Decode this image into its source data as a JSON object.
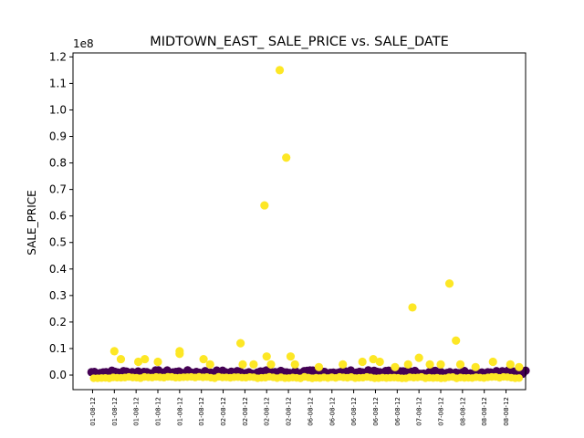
{
  "chart_data": {
    "type": "scatter",
    "title": "MIDTOWN_EAST_ SALE_PRICE vs. SALE_DATE",
    "xlabel": "",
    "ylabel": "SALE_PRICE",
    "y_multiplier_label": "1e8",
    "ylim": [
      -0.055,
      1.215
    ],
    "yticks": [
      0.0,
      0.1,
      0.2,
      0.3,
      0.4,
      0.5,
      0.6,
      0.7,
      0.8,
      0.9,
      1.0,
      1.1,
      1.2
    ],
    "ytick_labels": [
      "0.0",
      "0.1",
      "0.2",
      "0.3",
      "0.4",
      "0.5",
      "0.6",
      "0.7",
      "0.8",
      "0.9",
      "1.0",
      "1.1",
      "1.2"
    ],
    "xlim": [
      -0.9,
      19.9
    ],
    "xticks": [
      0,
      1,
      2,
      3,
      4,
      5,
      6,
      7,
      8,
      9,
      10,
      11,
      12,
      13,
      14,
      15,
      16,
      17,
      18,
      19
    ],
    "xtick_labels": [
      "01-08-12",
      "01-08-12",
      "01-08-12",
      "01-08-12",
      "01-08-12",
      "01-08-12",
      "02-08-12",
      "02-08-12",
      "02-08-12",
      "02-08-12",
      "06-08-12",
      "06-08-12",
      "06-08-12",
      "06-08-12",
      "06-08-12",
      "07-08-12",
      "07-08-12",
      "08-08-12",
      "08-08-12",
      "08-08-12"
    ],
    "grid": false,
    "legend": "none",
    "colors": {
      "high": "#fde725",
      "low": "#440154"
    },
    "series": [
      {
        "color_group": "high",
        "points": [
          [
            1.0,
            0.09
          ],
          [
            1.3,
            0.06
          ],
          [
            2.1,
            0.05
          ],
          [
            2.4,
            0.06
          ],
          [
            3.0,
            0.05
          ],
          [
            4.0,
            0.09
          ],
          [
            4.0,
            0.08
          ],
          [
            5.1,
            0.06
          ],
          [
            5.4,
            0.04
          ],
          [
            6.8,
            0.12
          ],
          [
            6.9,
            0.04
          ],
          [
            7.4,
            0.04
          ],
          [
            7.9,
            0.64
          ],
          [
            8.0,
            0.07
          ],
          [
            8.2,
            0.04
          ],
          [
            8.6,
            1.15
          ],
          [
            8.9,
            0.82
          ],
          [
            9.1,
            0.07
          ],
          [
            9.3,
            0.04
          ],
          [
            10.4,
            0.03
          ],
          [
            11.5,
            0.04
          ],
          [
            12.4,
            0.05
          ],
          [
            12.9,
            0.06
          ],
          [
            13.2,
            0.05
          ],
          [
            13.9,
            0.03
          ],
          [
            14.5,
            0.04
          ],
          [
            14.7,
            0.255
          ],
          [
            15.0,
            0.065
          ],
          [
            15.5,
            0.04
          ],
          [
            16.0,
            0.04
          ],
          [
            16.4,
            0.345
          ],
          [
            16.7,
            0.13
          ],
          [
            16.9,
            0.04
          ],
          [
            17.6,
            0.03
          ],
          [
            18.4,
            0.05
          ],
          [
            19.2,
            0.04
          ],
          [
            19.6,
            0.03
          ]
        ]
      },
      {
        "color_group": "low",
        "points": []
      }
    ]
  }
}
